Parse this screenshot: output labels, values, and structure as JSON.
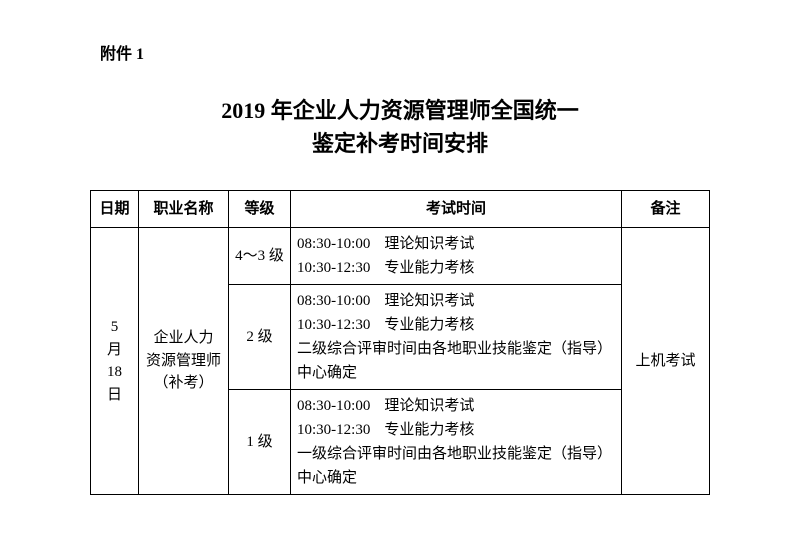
{
  "attachment": "附件 1",
  "title_line1": "2019 年企业人力资源管理师全国统一",
  "title_line2": "鉴定补考时间安排",
  "headers": {
    "date": "日期",
    "occupation": "职业名称",
    "level": "等级",
    "exam_time": "考试时间",
    "note": "备注"
  },
  "date": {
    "l1": "5",
    "l2": "月",
    "l3": "18",
    "l4": "日"
  },
  "occupation": {
    "l1": "企业人力",
    "l2": "资源管理师",
    "l3": "（补考）"
  },
  "levels": {
    "lvl43": "4～3 级",
    "lvl2": "2 级",
    "lvl1": "1 级"
  },
  "times": {
    "theory": {
      "range": "08:30-10:00",
      "label": "理论知识考试"
    },
    "skill": {
      "range": "10:30-12:30",
      "label": "专业能力考核"
    },
    "review2": "二级综合评审时间由各地职业技能鉴定（指导）中心确定",
    "review1": "一级综合评审时间由各地职业技能鉴定（指导）中心确定"
  },
  "note": "上机考试"
}
